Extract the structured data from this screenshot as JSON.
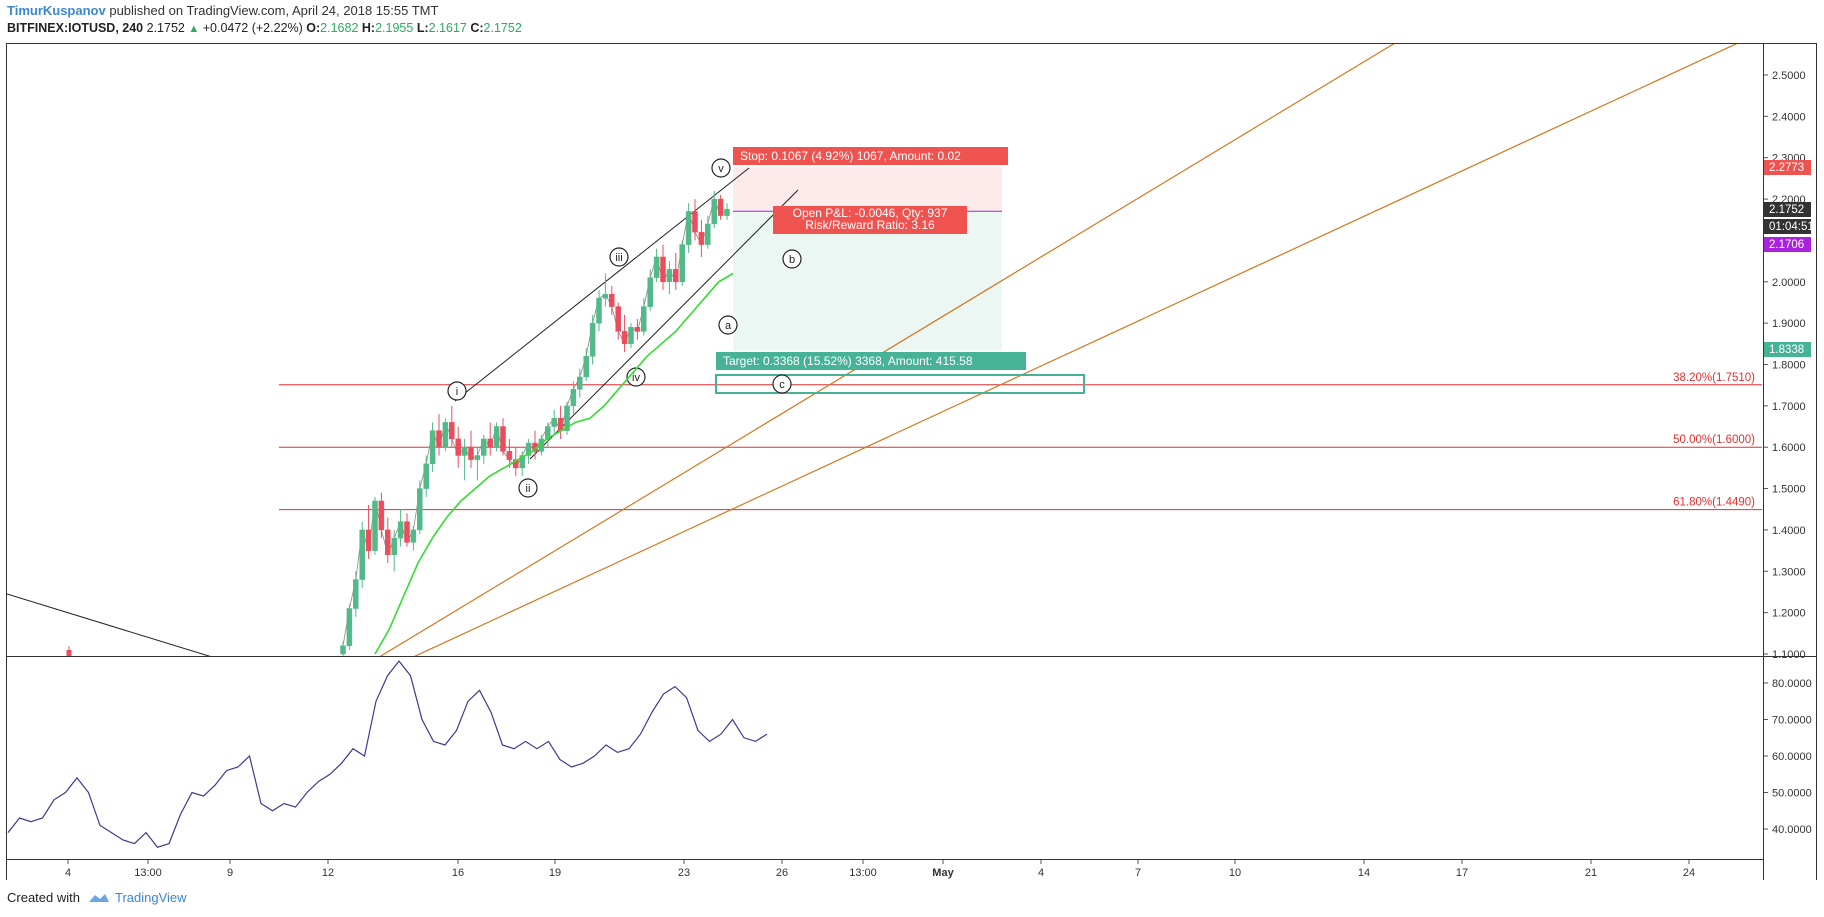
{
  "header": {
    "author": "TimurKuspanov",
    "published_text": "published on TradingView.com, April 24, 2018 15:55 TMT",
    "symbol": "BITFINEX:IOTUSD, 240",
    "last": "2.1752",
    "change": "+0.0472 (+2.22%)",
    "o_label": "O:",
    "o_value": "2.1682",
    "h_label": "H:",
    "h_value": "2.1955",
    "l_label": "L:",
    "l_value": "2.1617",
    "c_label": "C:",
    "c_value": "2.1752"
  },
  "footer": {
    "created_with": "Created with",
    "brand": "TradingView"
  },
  "colors": {
    "up": "#53b987",
    "down": "#eb4d5c",
    "ma": "#33dd33",
    "rsi": "#3b3b8f",
    "fib": "#e03030",
    "fan": "#d2781e",
    "target": "#46b396",
    "stop": "#ef5350",
    "last_price_bg": "#333333",
    "entry": "#aa22dd"
  },
  "chart_data": [
    {
      "type": "candlestick",
      "symbol": "BITFINEX:IOTUSD",
      "interval": "240",
      "title": "",
      "ylim": [
        1.1,
        2.58
      ],
      "y_ticks": [
        "2.5000",
        "2.4000",
        "2.3000",
        "2.2000",
        "2.1000",
        "2.0000",
        "1.9000",
        "1.8000",
        "1.7000",
        "1.6000",
        "1.5000",
        "1.4000",
        "1.3000",
        "1.2000",
        "1.1000"
      ],
      "x_ticks": [
        "4",
        "13:00",
        "9",
        "12",
        "16",
        "19",
        "23",
        "26",
        "13:00",
        "May",
        "4",
        "7",
        "10",
        "14",
        "17",
        "21",
        "24"
      ],
      "price_labels": {
        "stop_price": "2.2773",
        "last_price": "2.1752",
        "countdown": "01:04:51",
        "entry_price": "2.1706",
        "target_price": "1.8338"
      },
      "fib_levels": [
        {
          "label": "38.20%(1.7510)",
          "price": 1.751
        },
        {
          "label": "50.00%(1.6000)",
          "price": 1.6
        },
        {
          "label": "61.80%(1.4490)",
          "price": 1.449
        }
      ],
      "position": {
        "stop_label": "Stop: 0.1067 (4.92%) 1067, Amount: 0.02",
        "pnl_label": "Open P&L: -0.0046, Qty: 937",
        "rr_label": "Risk/Reward Ratio: 3.16",
        "target_label": "Target: 0.3368 (15.52%) 3368, Amount: 415.58",
        "entry": 2.1706,
        "stop": 2.2773,
        "target": 1.8338
      },
      "wave_labels": [
        "i",
        "ii",
        "iii",
        "iv",
        "v",
        "a",
        "b",
        "c"
      ],
      "ohlc_estimate": [
        [
          1.1,
          1.13,
          1.09,
          1.12
        ],
        [
          1.12,
          1.22,
          1.11,
          1.21
        ],
        [
          1.21,
          1.3,
          1.19,
          1.28
        ],
        [
          1.28,
          1.42,
          1.26,
          1.4
        ],
        [
          1.4,
          1.46,
          1.33,
          1.35
        ],
        [
          1.35,
          1.48,
          1.34,
          1.47
        ],
        [
          1.47,
          1.49,
          1.38,
          1.4
        ],
        [
          1.4,
          1.43,
          1.32,
          1.34
        ],
        [
          1.34,
          1.4,
          1.3,
          1.38
        ],
        [
          1.38,
          1.45,
          1.36,
          1.42
        ],
        [
          1.42,
          1.44,
          1.36,
          1.37
        ],
        [
          1.37,
          1.41,
          1.35,
          1.4
        ],
        [
          1.4,
          1.52,
          1.39,
          1.5
        ],
        [
          1.5,
          1.58,
          1.48,
          1.56
        ],
        [
          1.56,
          1.66,
          1.54,
          1.64
        ],
        [
          1.64,
          1.68,
          1.58,
          1.6
        ],
        [
          1.6,
          1.67,
          1.59,
          1.66
        ],
        [
          1.66,
          1.7,
          1.6,
          1.62
        ],
        [
          1.62,
          1.65,
          1.55,
          1.58
        ],
        [
          1.58,
          1.62,
          1.52,
          1.6
        ],
        [
          1.6,
          1.64,
          1.55,
          1.57
        ],
        [
          1.57,
          1.6,
          1.52,
          1.58
        ],
        [
          1.58,
          1.63,
          1.56,
          1.62
        ],
        [
          1.62,
          1.66,
          1.58,
          1.6
        ],
        [
          1.6,
          1.66,
          1.59,
          1.65
        ],
        [
          1.65,
          1.67,
          1.58,
          1.59
        ],
        [
          1.59,
          1.62,
          1.55,
          1.57
        ],
        [
          1.57,
          1.6,
          1.53,
          1.55
        ],
        [
          1.55,
          1.59,
          1.53,
          1.58
        ],
        [
          1.58,
          1.62,
          1.56,
          1.61
        ],
        [
          1.61,
          1.64,
          1.57,
          1.59
        ],
        [
          1.59,
          1.63,
          1.58,
          1.62
        ],
        [
          1.62,
          1.66,
          1.6,
          1.65
        ],
        [
          1.65,
          1.69,
          1.63,
          1.67
        ],
        [
          1.67,
          1.7,
          1.62,
          1.64
        ],
        [
          1.64,
          1.71,
          1.63,
          1.7
        ],
        [
          1.7,
          1.76,
          1.68,
          1.74
        ],
        [
          1.74,
          1.79,
          1.72,
          1.77
        ],
        [
          1.77,
          1.84,
          1.76,
          1.82
        ],
        [
          1.82,
          1.92,
          1.8,
          1.9
        ],
        [
          1.9,
          1.98,
          1.88,
          1.96
        ],
        [
          1.96,
          2.02,
          1.94,
          1.97
        ],
        [
          1.97,
          1.99,
          1.92,
          1.94
        ],
        [
          1.94,
          1.95,
          1.86,
          1.88
        ],
        [
          1.88,
          1.92,
          1.83,
          1.85
        ],
        [
          1.85,
          1.9,
          1.84,
          1.89
        ],
        [
          1.89,
          1.91,
          1.86,
          1.88
        ],
        [
          1.88,
          1.96,
          1.87,
          1.94
        ],
        [
          1.94,
          2.03,
          1.93,
          2.01
        ],
        [
          2.01,
          2.08,
          2.0,
          2.06
        ],
        [
          2.06,
          2.09,
          1.98,
          2.0
        ],
        [
          2.0,
          2.05,
          1.97,
          2.03
        ],
        [
          2.03,
          2.07,
          1.98,
          2.0
        ],
        [
          2.0,
          2.1,
          1.99,
          2.09
        ],
        [
          2.09,
          2.19,
          2.07,
          2.17
        ],
        [
          2.17,
          2.2,
          2.1,
          2.12
        ],
        [
          2.12,
          2.15,
          2.06,
          2.09
        ],
        [
          2.09,
          2.16,
          2.08,
          2.14
        ],
        [
          2.14,
          2.22,
          2.13,
          2.2
        ],
        [
          2.2,
          2.21,
          2.15,
          2.16
        ],
        [
          2.16,
          2.19,
          2.15,
          2.1752
        ]
      ],
      "ma_estimate": [
        1.1,
        1.16,
        1.24,
        1.32,
        1.38,
        1.43,
        1.47,
        1.5,
        1.53,
        1.55,
        1.57,
        1.59,
        1.62,
        1.64,
        1.66,
        1.67,
        1.7,
        1.74,
        1.78,
        1.82,
        1.85,
        1.88,
        1.92,
        1.96,
        2.0,
        2.02
      ]
    },
    {
      "type": "line",
      "title": "",
      "ylim": [
        32,
        87
      ],
      "y_ticks": [
        "80.0000",
        "70.0000",
        "60.0000",
        "50.0000",
        "40.0000"
      ],
      "values": [
        39,
        43,
        42,
        43,
        48,
        50,
        54,
        50,
        41,
        39,
        37,
        36,
        39,
        35,
        36,
        44,
        50,
        49,
        52,
        56,
        57,
        60,
        47,
        45,
        47,
        46,
        50,
        53,
        55,
        58,
        62,
        60,
        75,
        82,
        86,
        82,
        70,
        64,
        63,
        67,
        75,
        78,
        72,
        63,
        62,
        64,
        62,
        64,
        59,
        57,
        58,
        60,
        63,
        61,
        62,
        66,
        72,
        77,
        79,
        76,
        67,
        64,
        66,
        70,
        65,
        64,
        66
      ]
    }
  ]
}
